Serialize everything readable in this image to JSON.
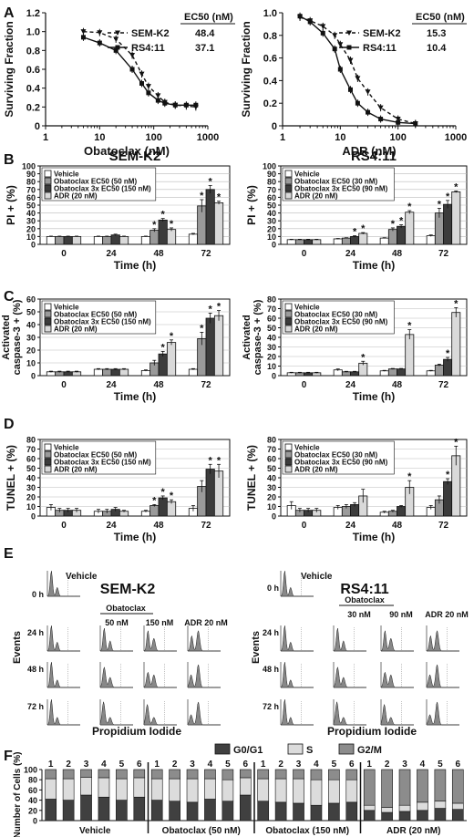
{
  "panels": {
    "A": "A",
    "B": "B",
    "C": "C",
    "D": "D",
    "E": "E",
    "F": "F"
  },
  "colors": {
    "vehicle": "#ffffff",
    "ec50": "#9a9a9a",
    "ec50x3": "#3c3c3c",
    "adr": "#d9d9d9",
    "g0g1": "#404040",
    "s": "#dcdcdc",
    "g2m": "#8c8c8c"
  },
  "chart_data": [
    {
      "id": "A-left",
      "type": "line",
      "xscale": "log",
      "xlabel": "Obatoclax (nM)",
      "ylabel": "Surviving Fraction",
      "xlim": [
        1,
        1000
      ],
      "ylim": [
        0,
        1.2
      ],
      "xticks": [
        "1",
        "10",
        "100",
        "1000"
      ],
      "yticks": [
        "0",
        "0.2",
        "0.4",
        "0.6",
        "0.8",
        "1.0",
        "1.2"
      ],
      "ec50_header": "EC50 (nM)",
      "series": [
        {
          "name": "SEM-K2",
          "ec50": "48.4",
          "style": "dashed",
          "marker": "triangle-down",
          "x": [
            5,
            10,
            20,
            40,
            60,
            80,
            120,
            160,
            250,
            400,
            600
          ],
          "y": [
            1.0,
            0.99,
            0.92,
            0.75,
            0.55,
            0.42,
            0.32,
            0.25,
            0.22,
            0.21,
            0.2
          ]
        },
        {
          "name": "RS4:11",
          "ec50": "37.1",
          "style": "solid",
          "marker": "square",
          "x": [
            5,
            10,
            20,
            40,
            60,
            80,
            120,
            160,
            250,
            400,
            600
          ],
          "y": [
            0.94,
            0.88,
            0.8,
            0.6,
            0.45,
            0.35,
            0.27,
            0.24,
            0.22,
            0.22,
            0.22
          ]
        }
      ]
    },
    {
      "id": "A-right",
      "type": "line",
      "xscale": "log",
      "xlabel": "ADR (nM)",
      "ylabel": "Surviving Fraction",
      "xlim": [
        1,
        1000
      ],
      "ylim": [
        0,
        1.0
      ],
      "xticks": [
        "1",
        "10",
        "100",
        "1000"
      ],
      "yticks": [
        "0",
        "0.2",
        "0.4",
        "0.6",
        "0.8",
        "1.0"
      ],
      "ec50_header": "EC50 (nM)",
      "series": [
        {
          "name": "SEM-K2",
          "ec50": "15.3",
          "style": "dashed",
          "marker": "triangle-down",
          "x": [
            2,
            3,
            5,
            8,
            10,
            15,
            20,
            30,
            50,
            100,
            200
          ],
          "y": [
            0.96,
            0.93,
            0.88,
            0.8,
            0.72,
            0.58,
            0.42,
            0.3,
            0.16,
            0.06,
            0.02
          ]
        },
        {
          "name": "RS4:11",
          "ec50": "10.4",
          "style": "solid",
          "marker": "square",
          "x": [
            2,
            3,
            5,
            8,
            10,
            15,
            20,
            30,
            50,
            100,
            200
          ],
          "y": [
            0.97,
            0.92,
            0.82,
            0.68,
            0.5,
            0.32,
            0.2,
            0.12,
            0.06,
            0.03,
            0.02
          ]
        }
      ]
    },
    {
      "id": "B-left",
      "type": "bar",
      "title": "SEM-K2",
      "xlabel": "Time (h)",
      "ylabel": "PI + (%)",
      "ylim": [
        0,
        100
      ],
      "yticks": [
        "0",
        "10",
        "20",
        "30",
        "40",
        "50",
        "60",
        "70",
        "80",
        "90",
        "100"
      ],
      "categories": [
        "0",
        "24",
        "48",
        "72"
      ],
      "legend": [
        "Vehicle",
        "Obatoclax EC50 (50 nM)",
        "Obatoclax 3x EC50 (150 nM)",
        "ADR (20 nM)"
      ],
      "series": [
        {
          "name": "Vehicle",
          "values": [
            10,
            10,
            10,
            13
          ],
          "err": [
            0.5,
            0.5,
            0.5,
            1
          ]
        },
        {
          "name": "Obatoclax EC50 (50 nM)",
          "values": [
            10,
            10,
            18,
            49
          ],
          "err": [
            0.5,
            0.5,
            2,
            8
          ]
        },
        {
          "name": "Obatoclax 3x EC50 (150 nM)",
          "values": [
            10,
            12,
            31,
            70
          ],
          "err": [
            0.5,
            1,
            2,
            5
          ]
        },
        {
          "name": "ADR (20 nM)",
          "values": [
            10,
            10,
            19,
            53
          ],
          "err": [
            0.5,
            0.5,
            2,
            2
          ]
        }
      ],
      "stars": [
        [
          0,
          0,
          0,
          0
        ],
        [
          0,
          0,
          1,
          1
        ],
        [
          0,
          0,
          1,
          1
        ],
        [
          0,
          0,
          1,
          1
        ]
      ]
    },
    {
      "id": "B-right",
      "type": "bar",
      "title": "RS4:11",
      "xlabel": "Time (h)",
      "ylabel": "PI + (%)",
      "ylim": [
        0,
        100
      ],
      "yticks": [
        "0",
        "10",
        "20",
        "30",
        "40",
        "50",
        "60",
        "70",
        "80",
        "90",
        "100"
      ],
      "categories": [
        "0",
        "24",
        "48",
        "72"
      ],
      "legend": [
        "Vehicle",
        "Obatoclax EC50 (30 nM)",
        "Obatoclax 3x EC50 (90 nM)",
        "ADR (20 nM)"
      ],
      "series": [
        {
          "name": "Vehicle",
          "values": [
            6,
            7,
            8,
            11
          ],
          "err": [
            0.5,
            0.5,
            0.5,
            1
          ]
        },
        {
          "name": "Obatoclax EC50 (30 nM)",
          "values": [
            6,
            8,
            19,
            40
          ],
          "err": [
            0.5,
            0.5,
            2,
            6
          ]
        },
        {
          "name": "Obatoclax 3x EC50 (90 nM)",
          "values": [
            6,
            10,
            23,
            51
          ],
          "err": [
            0.5,
            1,
            2,
            5
          ]
        },
        {
          "name": "ADR (20 nM)",
          "values": [
            6,
            14,
            41,
            67
          ],
          "err": [
            0.5,
            1,
            2,
            1
          ]
        }
      ],
      "stars": [
        [
          0,
          0,
          0,
          0
        ],
        [
          0,
          0,
          1,
          1
        ],
        [
          0,
          1,
          1,
          1
        ],
        [
          0,
          1,
          1,
          1
        ]
      ]
    },
    {
      "id": "C-left",
      "type": "bar",
      "xlabel": "Time (h)",
      "ylabel": "Activated caspase-3 + (%)",
      "ylim": [
        0,
        60
      ],
      "yticks": [
        "0",
        "10",
        "20",
        "30",
        "40",
        "50",
        "60"
      ],
      "categories": [
        "0",
        "24",
        "48",
        "72"
      ],
      "legend": [
        "Vehicle",
        "Obatoclax EC50 (50 nM)",
        "Obatoclax 3x EC50 (150 nM)",
        "ADR (20 nM)"
      ],
      "series": [
        {
          "name": "Vehicle",
          "values": [
            3,
            5,
            4,
            5
          ],
          "err": [
            0.5,
            0.5,
            0.5,
            0.5
          ]
        },
        {
          "name": "Obatoclax EC50 (50 nM)",
          "values": [
            3,
            5,
            10,
            29
          ],
          "err": [
            0.5,
            0.5,
            2,
            5
          ]
        },
        {
          "name": "Obatoclax 3x EC50 (150 nM)",
          "values": [
            3,
            5,
            17,
            45
          ],
          "err": [
            0.5,
            0.5,
            2,
            4
          ]
        },
        {
          "name": "ADR (20 nM)",
          "values": [
            3,
            5,
            26,
            47
          ],
          "err": [
            0.5,
            0.5,
            2,
            4
          ]
        }
      ],
      "stars": [
        [
          0,
          0,
          0,
          0
        ],
        [
          0,
          0,
          0,
          1
        ],
        [
          0,
          0,
          1,
          1
        ],
        [
          0,
          0,
          1,
          1
        ]
      ]
    },
    {
      "id": "C-right",
      "type": "bar",
      "xlabel": "Time (h)",
      "ylabel": "Activated caspase-3 + (%)",
      "ylim": [
        0,
        80
      ],
      "yticks": [
        "0",
        "10",
        "20",
        "30",
        "40",
        "50",
        "60",
        "70",
        "80"
      ],
      "categories": [
        "0",
        "24",
        "48",
        "72"
      ],
      "legend": [
        "Vehicle",
        "Obatoclax EC50 (30 nM)",
        "Obatoclax 3x EC50 (90 nM)",
        "ADR (20 nM)"
      ],
      "series": [
        {
          "name": "Vehicle",
          "values": [
            3,
            6,
            5,
            5
          ],
          "err": [
            0.5,
            1,
            0.5,
            0.5
          ]
        },
        {
          "name": "Obatoclax EC50 (30 nM)",
          "values": [
            3,
            4,
            7,
            11
          ],
          "err": [
            0.5,
            0.5,
            0.5,
            1
          ]
        },
        {
          "name": "Obatoclax 3x EC50 (90 nM)",
          "values": [
            3,
            4,
            7,
            17
          ],
          "err": [
            0.5,
            0.5,
            0.5,
            2
          ]
        },
        {
          "name": "ADR (20 nM)",
          "values": [
            3,
            13,
            43,
            66
          ],
          "err": [
            0.5,
            2,
            5,
            5
          ]
        }
      ],
      "stars": [
        [
          0,
          0,
          0,
          0
        ],
        [
          0,
          0,
          0,
          0
        ],
        [
          0,
          0,
          0,
          1
        ],
        [
          0,
          1,
          1,
          1
        ]
      ]
    },
    {
      "id": "D-left",
      "type": "bar",
      "xlabel": "Time (h)",
      "ylabel": "TUNEL + (%)",
      "ylim": [
        0,
        80
      ],
      "yticks": [
        "0",
        "10",
        "20",
        "30",
        "40",
        "50",
        "60",
        "70",
        "80"
      ],
      "categories": [
        "0",
        "24",
        "48",
        "72"
      ],
      "legend": [
        "Vehicle",
        "Obatoclax EC50 (50 nM)",
        "Obatoclax 3x EC50 (150 nM)",
        "ADR (20 nM)"
      ],
      "series": [
        {
          "name": "Vehicle",
          "values": [
            9,
            5,
            5,
            8
          ],
          "err": [
            3,
            2,
            1,
            3
          ]
        },
        {
          "name": "Obatoclax EC50 (50 nM)",
          "values": [
            6,
            5,
            11,
            31
          ],
          "err": [
            2,
            2,
            1,
            6
          ]
        },
        {
          "name": "Obatoclax 3x EC50 (150 nM)",
          "values": [
            6,
            7,
            19,
            49
          ],
          "err": [
            2,
            2,
            2,
            5
          ]
        },
        {
          "name": "ADR (20 nM)",
          "values": [
            6,
            5,
            15,
            47
          ],
          "err": [
            2,
            1,
            2,
            7
          ]
        }
      ],
      "stars": [
        [
          0,
          0,
          0,
          0
        ],
        [
          0,
          0,
          1,
          0
        ],
        [
          0,
          0,
          1,
          1
        ],
        [
          0,
          0,
          1,
          1
        ]
      ]
    },
    {
      "id": "D-right",
      "type": "bar",
      "xlabel": "Time (h)",
      "ylabel": "TUNEL + (%)",
      "ylim": [
        0,
        80
      ],
      "yticks": [
        "0",
        "10",
        "20",
        "30",
        "40",
        "50",
        "60",
        "70",
        "80"
      ],
      "categories": [
        "0",
        "24",
        "48",
        "72"
      ],
      "legend": [
        "Vehicle",
        "Obatoclax EC50 (30 nM)",
        "Obatoclax 3x EC50 (90 nM)",
        "ADR (20 nM)"
      ],
      "series": [
        {
          "name": "Vehicle",
          "values": [
            11,
            9,
            4,
            9
          ],
          "err": [
            4,
            2,
            1,
            2
          ]
        },
        {
          "name": "Obatoclax EC50 (30 nM)",
          "values": [
            6,
            10,
            5,
            17
          ],
          "err": [
            2,
            2,
            1,
            4
          ]
        },
        {
          "name": "Obatoclax 3x EC50 (90 nM)",
          "values": [
            6,
            12,
            10,
            36
          ],
          "err": [
            2,
            2,
            1,
            3
          ]
        },
        {
          "name": "ADR (20 nM)",
          "values": [
            6,
            21,
            30,
            63
          ],
          "err": [
            2,
            7,
            7,
            10
          ]
        }
      ],
      "stars": [
        [
          0,
          0,
          0,
          0
        ],
        [
          0,
          0,
          0,
          0
        ],
        [
          0,
          0,
          0,
          1
        ],
        [
          0,
          0,
          1,
          1
        ]
      ]
    },
    {
      "id": "F",
      "type": "bar",
      "stacked": true,
      "ylabel": "Number of Cells (%)",
      "ylim": [
        0,
        100
      ],
      "yticks": [
        "0",
        "20",
        "40",
        "60",
        "80",
        "100"
      ],
      "legend": [
        "G0/G1",
        "S",
        "G2/M"
      ],
      "sample_labels": [
        "1",
        "2",
        "3",
        "4",
        "5",
        "6"
      ],
      "groups": [
        {
          "name": "Vehicle",
          "g0g1": [
            42,
            40,
            50,
            46,
            40,
            46
          ],
          "s": [
            40,
            42,
            35,
            38,
            42,
            38
          ],
          "g2m": [
            18,
            18,
            15,
            16,
            18,
            16
          ]
        },
        {
          "name": "Obatoclax (50 nM)",
          "g0g1": [
            40,
            38,
            36,
            42,
            38,
            50
          ],
          "s": [
            42,
            44,
            46,
            40,
            42,
            34
          ],
          "g2m": [
            18,
            18,
            18,
            18,
            20,
            16
          ]
        },
        {
          "name": "Obatoclax (150 nM)",
          "g0g1": [
            38,
            36,
            34,
            30,
            34,
            36
          ],
          "s": [
            44,
            46,
            48,
            50,
            46,
            44
          ],
          "g2m": [
            18,
            18,
            18,
            20,
            20,
            20
          ]
        },
        {
          "name": "ADR (20 nM)",
          "g0g1": [
            20,
            16,
            18,
            20,
            24,
            22
          ],
          "s": [
            10,
            10,
            12,
            16,
            14,
            12
          ],
          "g2m": [
            70,
            74,
            70,
            64,
            62,
            66
          ]
        }
      ]
    }
  ],
  "flow": {
    "left": {
      "title": "SEM-K2",
      "treatment_header": "",
      "vehicle": "Vehicle",
      "obatoclax": "",
      "conditions": [
        "50 nM",
        "150 nM",
        "ADR 20 nM"
      ],
      "times": [
        "0 h",
        "24 h",
        "48 h",
        "72 h"
      ],
      "ylabel": "Events",
      "xlabel": "Propidium Iodide"
    },
    "right": {
      "title": "RS4:11",
      "vehicle": "Vehicle",
      "obatoclax": "Obatoclax",
      "conditions": [
        "30 nM",
        "90 nM",
        "ADR 20 nM"
      ],
      "times": [
        "0 h",
        "24 h",
        "48 h",
        "72 h"
      ],
      "ylabel": "Events",
      "xlabel": "Propidium Iodide"
    },
    "left_obatoclax": "Obatoclax"
  }
}
